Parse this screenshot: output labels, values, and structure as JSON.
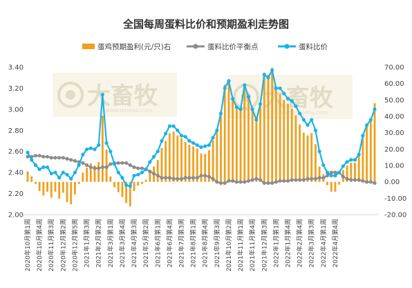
{
  "chart_data": {
    "type": "bar+line",
    "title": "全国每周蛋料比价和预期盈利走势图",
    "legend": [
      {
        "key": "profit",
        "label": "蛋鸡预期盈利(元/只)右",
        "color": "#f0a01e",
        "kind": "bar"
      },
      {
        "key": "breakeven",
        "label": "蛋料比价平衡点",
        "color": "#8c8c8c",
        "kind": "line"
      },
      {
        "key": "ratio",
        "label": "蛋料比价",
        "color": "#1ab3e6",
        "kind": "line"
      }
    ],
    "legend_position": "top",
    "y_left": {
      "min": 2.0,
      "max": 3.4,
      "step": 0.2,
      "ticks": [
        "2.00",
        "2.20",
        "2.40",
        "2.60",
        "2.80",
        "3.00",
        "3.20",
        "3.40"
      ]
    },
    "y_right": {
      "min": -20,
      "max": 70,
      "step": 10,
      "ticks": [
        "-20.00",
        "-10.00",
        "0.00",
        "10.00",
        "20.00",
        "30.00",
        "40.00",
        "50.00",
        "60.00",
        "70.00"
      ]
    },
    "x_labels": [
      "2020年10月第1周",
      "2020年10月第4周",
      "2020年11月第3周",
      "2020年12月第2周",
      "2020年12月第5周",
      "2021年1月第3周",
      "2021年2月第2周",
      "2021年3月第1周",
      "2021年3月第4周",
      "2021年4月第3周",
      "2021年5月第2周",
      "2021年6月第1周",
      "2021年6月第4周",
      "2021年7月第3周",
      "2021年8月第1周",
      "2021年8月第4周",
      "2021年9月第3周",
      "2021年10月第2周",
      "2021年11月第1周",
      "2021年11月第4周",
      "2021年12月第3周",
      "2022年1月第1周",
      "2022年1月第4周",
      "2022年2月第4周",
      "2022年3月第3周",
      "2022年4月第1周",
      "2022年4月第4周"
    ],
    "x_label_step": 3,
    "grid": false,
    "ratio": [
      2.59,
      2.52,
      2.47,
      2.43,
      2.45,
      2.45,
      2.39,
      2.4,
      2.35,
      2.4,
      2.38,
      2.34,
      2.4,
      2.47,
      2.57,
      2.62,
      2.63,
      2.62,
      2.66,
      3.14,
      2.68,
      2.6,
      2.48,
      2.4,
      2.35,
      2.28,
      2.27,
      2.37,
      2.38,
      2.4,
      2.43,
      2.5,
      2.55,
      2.6,
      2.7,
      2.77,
      2.84,
      2.84,
      2.8,
      2.75,
      2.74,
      2.7,
      2.68,
      2.66,
      2.64,
      2.65,
      2.66,
      2.73,
      2.8,
      2.96,
      3.2,
      3.27,
      3.1,
      3.02,
      3.0,
      3.23,
      3.12,
      3.0,
      2.9,
      3.05,
      3.33,
      3.3,
      3.37,
      3.2,
      3.2,
      3.15,
      3.1,
      3.08,
      3.03,
      2.96,
      2.9,
      2.85,
      2.9,
      2.8,
      2.6,
      2.47,
      2.4,
      2.37,
      2.37,
      2.4,
      2.46,
      2.5,
      2.52,
      2.52,
      2.57,
      2.75,
      2.85,
      2.9,
      3.0
    ],
    "breakeven": [
      2.55,
      2.55,
      2.56,
      2.56,
      2.55,
      2.55,
      2.54,
      2.54,
      2.54,
      2.54,
      2.53,
      2.52,
      2.51,
      2.5,
      2.49,
      2.47,
      2.45,
      2.44,
      2.44,
      2.45,
      2.45,
      2.48,
      2.49,
      2.49,
      2.49,
      2.49,
      2.47,
      2.45,
      2.44,
      2.44,
      2.43,
      2.41,
      2.39,
      2.37,
      2.35,
      2.35,
      2.35,
      2.34,
      2.34,
      2.34,
      2.35,
      2.35,
      2.35,
      2.35,
      2.37,
      2.37,
      2.36,
      2.34,
      2.31,
      2.3,
      2.3,
      2.32,
      2.32,
      2.31,
      2.31,
      2.31,
      2.32,
      2.33,
      2.34,
      2.33,
      2.3,
      2.3,
      2.3,
      2.31,
      2.32,
      2.32,
      2.32,
      2.33,
      2.33,
      2.33,
      2.33,
      2.34,
      2.34,
      2.34,
      2.35,
      2.35,
      2.37,
      2.4,
      2.4,
      2.4,
      2.36,
      2.34,
      2.33,
      2.33,
      2.33,
      2.32,
      2.31,
      2.31,
      2.3
    ],
    "profit": [
      6.33,
      3.33,
      -1.33,
      -5.67,
      -8.33,
      -6.0,
      -9.67,
      -6.0,
      -10.33,
      -6.67,
      -12.33,
      -13.67,
      -7.67,
      -1.33,
      5.67,
      8.67,
      11.33,
      10.0,
      12.0,
      40.33,
      19.67,
      3.33,
      -3.33,
      -6.33,
      -9.33,
      -13.0,
      -15.0,
      -5.67,
      -2.33,
      -1.33,
      1.33,
      5.67,
      9.33,
      13.33,
      20.67,
      25.0,
      29.67,
      30.67,
      28.33,
      26.67,
      24.33,
      22.67,
      21.67,
      20.33,
      17.33,
      17.0,
      19.33,
      25.33,
      32.67,
      43.0,
      59.33,
      62.33,
      51.0,
      45.67,
      44.33,
      60.0,
      52.0,
      45.0,
      37.0,
      47.33,
      65.0,
      65.33,
      69.67,
      57.67,
      53.33,
      50.0,
      47.67,
      44.67,
      40.67,
      35.0,
      30.0,
      28.33,
      29.67,
      23.0,
      9.33,
      4.67,
      -2.0,
      -6.0,
      -6.0,
      -1.67,
      7.33,
      10.0,
      11.67,
      11.67,
      15.67,
      29.0,
      34.67,
      38.67,
      48.0
    ]
  }
}
